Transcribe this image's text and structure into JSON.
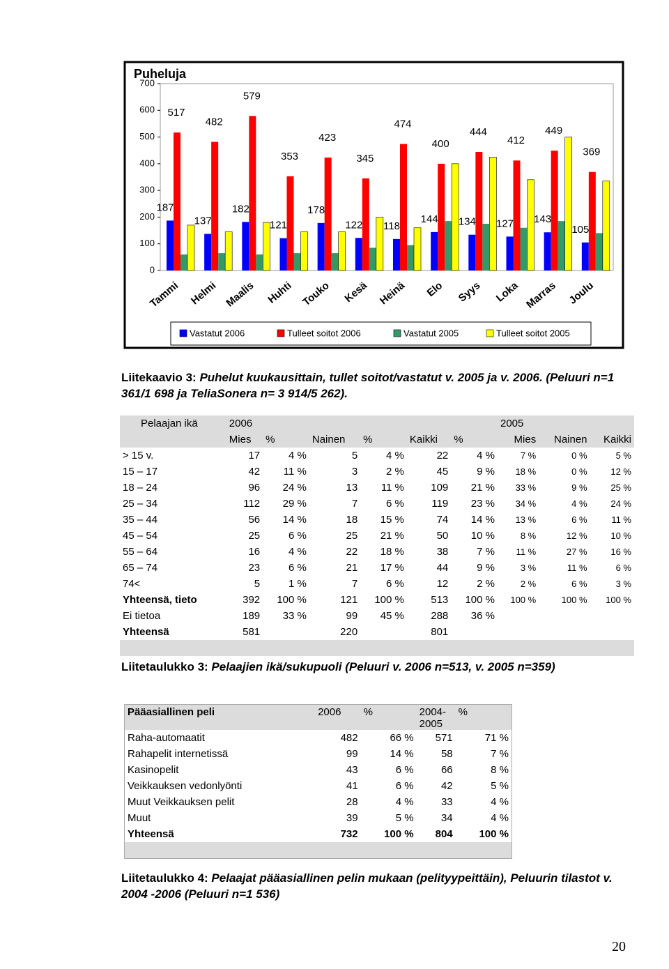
{
  "chart_data": {
    "type": "bar",
    "title": "Puheluja",
    "categories": [
      "Tammi",
      "Helmi",
      "Maalis",
      "Huhti",
      "Touko",
      "Kesä",
      "Heinä",
      "Elo",
      "Syys",
      "Loka",
      "Marras",
      "Joulu"
    ],
    "series": [
      {
        "name": "Vastatut 2006",
        "color": "#0000ff",
        "values": [
          187,
          137,
          182,
          121,
          178,
          122,
          118,
          144,
          134,
          127,
          143,
          105
        ]
      },
      {
        "name": "Tulleet soitot 2006",
        "color": "#ff0000",
        "values": [
          517,
          482,
          579,
          353,
          423,
          345,
          474,
          400,
          444,
          412,
          449,
          369
        ]
      },
      {
        "name": "Vastatut 2005",
        "color": "#339966",
        "values": [
          60,
          65,
          60,
          65,
          65,
          85,
          95,
          185,
          175,
          160,
          185,
          140
        ]
      },
      {
        "name": "Tulleet soitot 2005",
        "color": "#ffff00",
        "values": [
          170,
          145,
          180,
          145,
          145,
          200,
          160,
          400,
          425,
          340,
          500,
          335
        ]
      }
    ],
    "ylim": [
      0,
      700
    ],
    "yticks": [
      0,
      100,
      200,
      300,
      400,
      500,
      600,
      700
    ],
    "legend": "bottom"
  },
  "caption1": {
    "label": "Liitekaavio 3:",
    "text": "Puhelut kuukausittain, tullet soitot/vastatut v. 2005 ja v. 2006. (Peluuri n=1 361/1 698 ja TeliaSonera n= 3 914/5 262)."
  },
  "table1": {
    "header": [
      "Pelaajan ikä",
      "2006",
      "2005"
    ],
    "columns": [
      "Mies",
      "%",
      "Nainen",
      "%",
      "Kaikki",
      "%",
      "Mies",
      "Nainen",
      "Kaikki"
    ],
    "rows": [
      [
        "> 15 v.",
        "17",
        "4 %",
        "5",
        "4 %",
        "22",
        "4 %",
        "7 %",
        "0 %",
        "5 %"
      ],
      [
        "15 – 17",
        "42",
        "11 %",
        "3",
        "2 %",
        "45",
        "9 %",
        "18 %",
        "0 %",
        "12 %"
      ],
      [
        "18 – 24",
        "96",
        "24 %",
        "13",
        "11 %",
        "109",
        "21 %",
        "33 %",
        "9 %",
        "25 %"
      ],
      [
        "25 – 34",
        "112",
        "29 %",
        "7",
        "6 %",
        "119",
        "23 %",
        "34 %",
        "4 %",
        "24 %"
      ],
      [
        "35 – 44",
        "56",
        "14 %",
        "18",
        "15 %",
        "74",
        "14 %",
        "13 %",
        "6 %",
        "11 %"
      ],
      [
        "45 – 54",
        "25",
        "6 %",
        "25",
        "21 %",
        "50",
        "10 %",
        "8 %",
        "12 %",
        "10 %"
      ],
      [
        "55 – 64",
        "16",
        "4 %",
        "22",
        "18 %",
        "38",
        "7 %",
        "11 %",
        "27 %",
        "16 %"
      ],
      [
        "65 – 74",
        "23",
        "6 %",
        "21",
        "17 %",
        "44",
        "9 %",
        "3 %",
        "11 %",
        "6 %"
      ],
      [
        "74<",
        "5",
        "1 %",
        "7",
        "6 %",
        "12",
        "2 %",
        "2 %",
        "6 %",
        "3 %"
      ],
      [
        "Yhteensä, tieto",
        "392",
        "100 %",
        "121",
        "100 %",
        "513",
        "100 %",
        "100 %",
        "100 %",
        "100 %"
      ],
      [
        "Ei tietoa",
        "189",
        "33 %",
        "99",
        "45 %",
        "288",
        "36 %",
        null,
        null,
        null
      ],
      [
        "Yhteensä",
        "581",
        null,
        "220",
        null,
        "801",
        null,
        null,
        null,
        null
      ]
    ]
  },
  "caption2": {
    "label": "Liitetaulukko 3:",
    "text": "Pelaajien ikä/sukupuoli (Peluuri v. 2006 n=513, v. 2005 n=359)"
  },
  "table2": {
    "header": [
      "Pääasiallinen peli",
      "2006",
      "%",
      "2004-2005",
      "%"
    ],
    "rows": [
      [
        "Raha-automaatit",
        "482",
        "66 %",
        "571",
        "71 %"
      ],
      [
        "Rahapelit internetissä",
        "99",
        "14 %",
        "58",
        "7 %"
      ],
      [
        "Kasinopelit",
        "43",
        "6 %",
        "66",
        "8 %"
      ],
      [
        "Veikkauksen vedonlyönti",
        "41",
        "6 %",
        "42",
        "5 %"
      ],
      [
        "Muut Veikkauksen pelit",
        "28",
        "4 %",
        "33",
        "4 %"
      ],
      [
        "Muut",
        "39",
        "5 %",
        "34",
        "4 %"
      ],
      [
        "Yhteensä",
        "732",
        "100 %",
        "804",
        "100 %"
      ]
    ]
  },
  "caption3": {
    "label": "Liitetaulukko 4:",
    "text": "Pelaajat pääasiallinen pelin mukaan (pelityypeittäin), Peluurin tilastot v. 2004 -2006 (Peluuri n=1 536)"
  },
  "page_number": "20"
}
